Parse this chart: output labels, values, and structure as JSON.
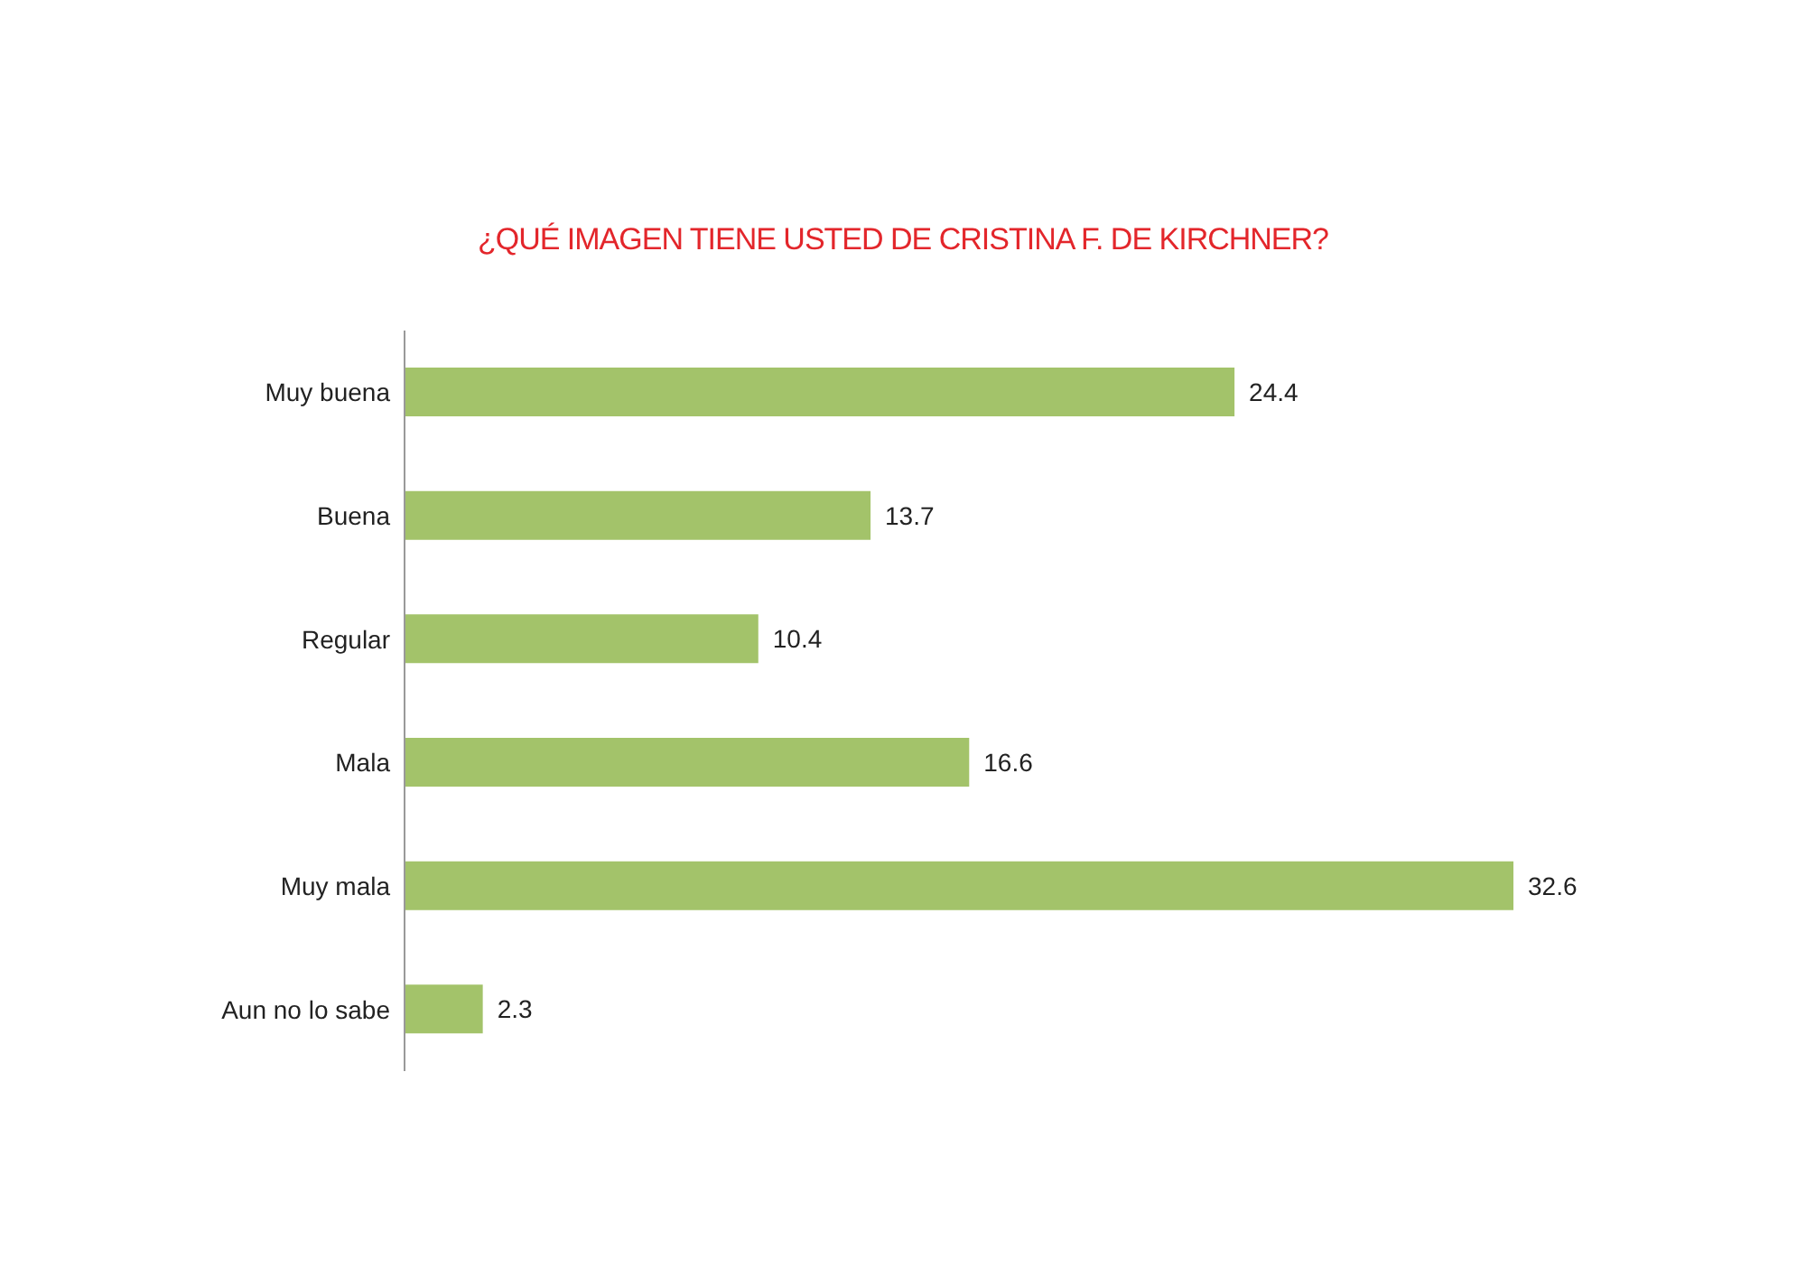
{
  "chart_data": {
    "type": "bar",
    "orientation": "horizontal",
    "title": "¿QUÉ IMAGEN TIENE USTED DE CRISTINA F. DE KIRCHNER?",
    "categories": [
      "Muy buena",
      "Buena",
      "Regular",
      "Mala",
      "Muy mala",
      "Aun no lo sabe"
    ],
    "values": [
      24.4,
      13.7,
      10.4,
      16.6,
      32.6,
      2.3
    ],
    "color": "#a3c36a",
    "data_labels": true
  }
}
